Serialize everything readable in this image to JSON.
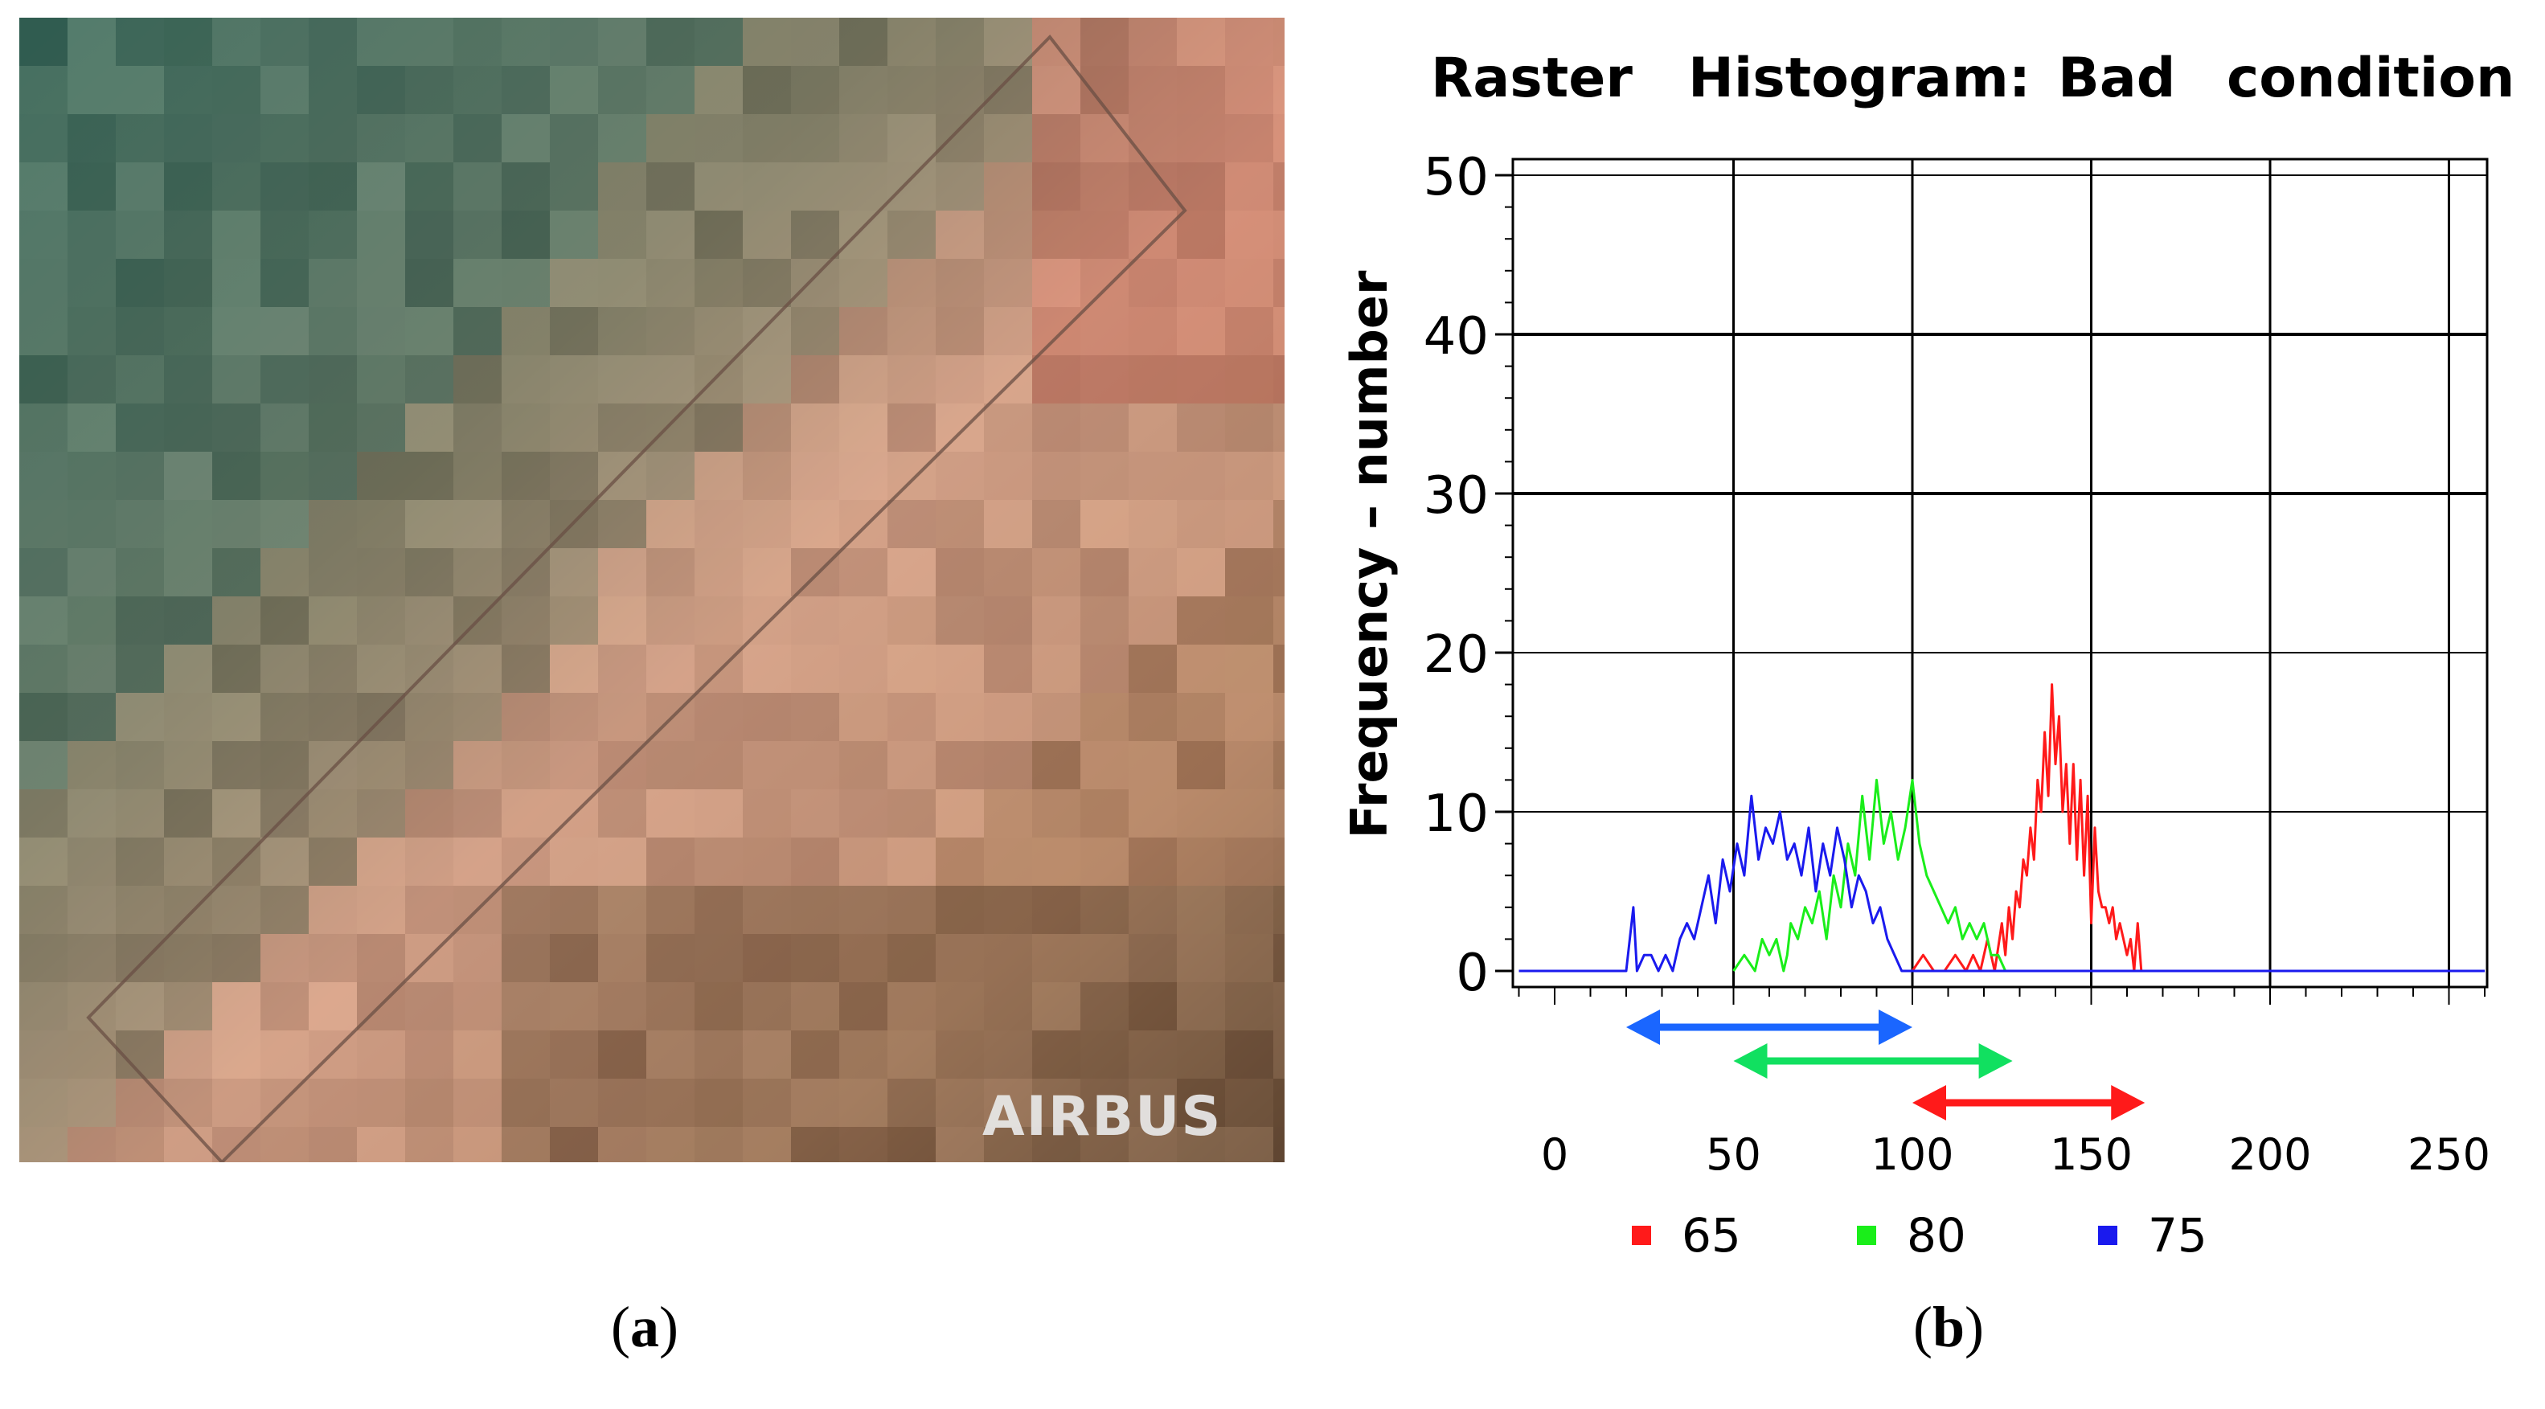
{
  "panel_a": {
    "watermark": "AIRBUS",
    "caption_open": "(",
    "caption_letter": "a",
    "caption_close": ")"
  },
  "panel_b": {
    "caption_open": "(",
    "caption_letter": "b",
    "caption_close": ")"
  },
  "chart_data": {
    "type": "line",
    "title": "Raster Histogram: Bad condition",
    "title_words": [
      "Raster",
      "Histogram:",
      "Bad",
      "condition"
    ],
    "ylabel": "Frequency – number",
    "xlim": [
      -10,
      260
    ],
    "ylim": [
      0,
      50
    ],
    "x_ticks": [
      0,
      50,
      100,
      150,
      200,
      250
    ],
    "y_ticks": [
      0,
      10,
      20,
      30,
      40,
      50
    ],
    "grid": true,
    "legend_position": "bottom",
    "series": [
      {
        "name": "65",
        "color": "#ff1a1a",
        "x": [
          100,
          103,
          106,
          109,
          112,
          115,
          117,
          119,
          121,
          123,
          125,
          126,
          127,
          128,
          129,
          130,
          131,
          132,
          133,
          134,
          135,
          136,
          137,
          138,
          139,
          140,
          141,
          142,
          143,
          144,
          145,
          146,
          147,
          148,
          149,
          150,
          151,
          152,
          153,
          154,
          155,
          156,
          157,
          158,
          159,
          160,
          161,
          162,
          163,
          164
        ],
        "values": [
          0,
          1,
          0,
          0,
          1,
          0,
          1,
          0,
          2,
          0,
          3,
          1,
          4,
          2,
          5,
          4,
          7,
          6,
          9,
          7,
          12,
          10,
          15,
          11,
          18,
          13,
          16,
          10,
          13,
          8,
          13,
          7,
          12,
          6,
          11,
          3,
          9,
          5,
          4,
          4,
          3,
          4,
          2,
          3,
          2,
          1,
          2,
          0,
          3,
          0
        ]
      },
      {
        "name": "80",
        "color": "#1aee1a",
        "x": [
          50,
          53,
          56,
          58,
          60,
          62,
          64,
          65,
          66,
          68,
          70,
          72,
          74,
          76,
          78,
          80,
          82,
          84,
          86,
          88,
          90,
          92,
          94,
          96,
          98,
          100,
          102,
          104,
          106,
          108,
          110,
          112,
          114,
          116,
          118,
          120,
          122,
          124,
          126
        ],
        "values": [
          0,
          1,
          0,
          2,
          1,
          2,
          0,
          1,
          3,
          2,
          4,
          3,
          5,
          2,
          6,
          4,
          8,
          6,
          11,
          7,
          12,
          8,
          10,
          7,
          9,
          12,
          8,
          6,
          5,
          4,
          3,
          4,
          2,
          3,
          2,
          3,
          1,
          1,
          0
        ]
      },
      {
        "name": "75",
        "color": "#1a1aee",
        "x": [
          -10,
          20,
          22,
          23,
          25,
          27,
          29,
          31,
          33,
          35,
          37,
          39,
          41,
          43,
          45,
          47,
          49,
          51,
          53,
          55,
          57,
          59,
          61,
          63,
          65,
          67,
          69,
          71,
          73,
          75,
          77,
          79,
          81,
          83,
          85,
          87,
          89,
          91,
          93,
          95,
          97,
          99,
          101,
          260
        ],
        "values": [
          0,
          0,
          4,
          0,
          1,
          1,
          0,
          1,
          0,
          2,
          3,
          2,
          4,
          6,
          3,
          7,
          5,
          8,
          6,
          11,
          7,
          9,
          8,
          10,
          7,
          8,
          6,
          9,
          5,
          8,
          6,
          9,
          7,
          4,
          6,
          5,
          3,
          4,
          2,
          1,
          0,
          0,
          0,
          0
        ]
      }
    ],
    "range_arrows": [
      {
        "series": "75",
        "color": "#1a66ff",
        "from": 20,
        "to": 100
      },
      {
        "series": "80",
        "color": "#11e060",
        "from": 50,
        "to": 128
      },
      {
        "series": "65",
        "color": "#ff1a1a",
        "from": 100,
        "to": 165
      }
    ],
    "legend": [
      {
        "label": "65",
        "color": "#ff1a1a"
      },
      {
        "label": "80",
        "color": "#1aee1a"
      },
      {
        "label": "75",
        "color": "#1a1aee"
      }
    ]
  }
}
